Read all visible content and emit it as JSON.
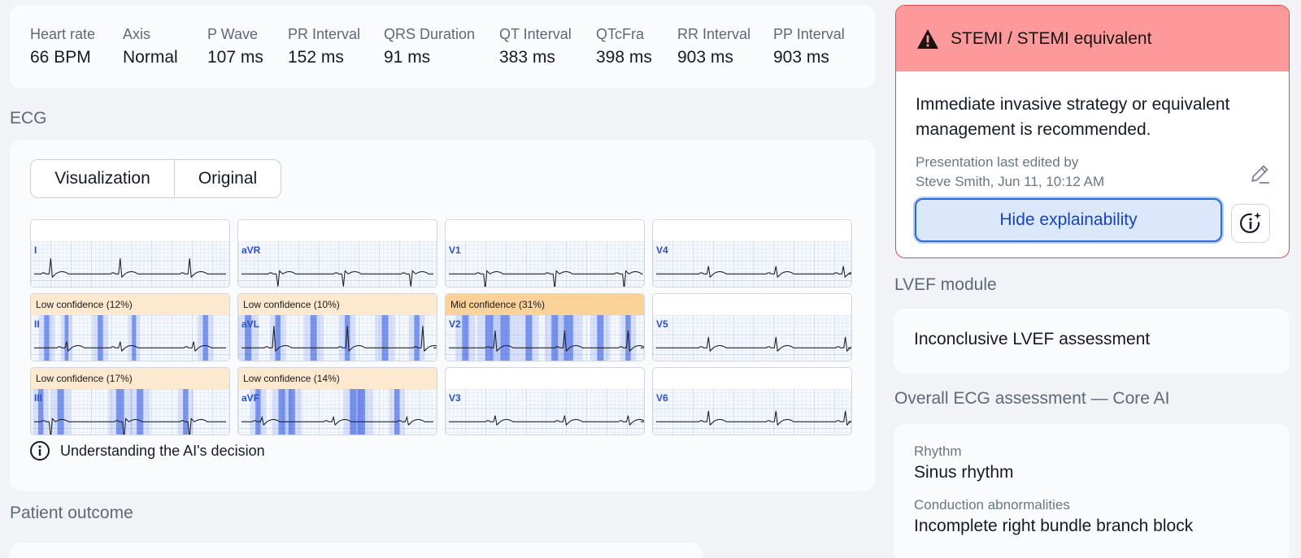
{
  "metrics": [
    {
      "label": "Heart rate",
      "value": "66 BPM"
    },
    {
      "label": "Axis",
      "value": "Normal"
    },
    {
      "label": "P Wave",
      "value": "107 ms"
    },
    {
      "label": "PR Interval",
      "value": "152 ms"
    },
    {
      "label": "QRS Duration",
      "value": "91 ms"
    },
    {
      "label": "QT Interval",
      "value": "383 ms"
    },
    {
      "label": "QTcFra",
      "value": "398 ms"
    },
    {
      "label": "RR Interval",
      "value": "903 ms"
    },
    {
      "label": "PP Interval",
      "value": "903 ms"
    }
  ],
  "ecg": {
    "title": "ECG",
    "tabs": {
      "visualization": "Visualization",
      "original": "Original"
    },
    "leads": [
      {
        "name": "I",
        "confidence": ""
      },
      {
        "name": "aVR",
        "confidence": ""
      },
      {
        "name": "V1",
        "confidence": ""
      },
      {
        "name": "V4",
        "confidence": ""
      },
      {
        "name": "II",
        "confidence": "Low confidence (12%)"
      },
      {
        "name": "aVL",
        "confidence": "Low confidence (10%)"
      },
      {
        "name": "V2",
        "confidence": "Mid confidence (31%)"
      },
      {
        "name": "V5",
        "confidence": ""
      },
      {
        "name": "III",
        "confidence": "Low confidence (17%)"
      },
      {
        "name": "aVF",
        "confidence": "Low confidence (14%)"
      },
      {
        "name": "V3",
        "confidence": ""
      },
      {
        "name": "V6",
        "confidence": ""
      }
    ],
    "ai_note": "Understanding the AI's decision"
  },
  "outcome": {
    "title": "Patient outcome"
  },
  "alert": {
    "title": "STEMI / STEMI equivalent",
    "message": "Immediate invasive strategy or equivalent management is recommended.",
    "edited_line1": "Presentation last edited by",
    "edited_line2": "Steve Smith, Jun 11, 10:12 AM",
    "hide_button": "Hide explainability"
  },
  "lvef": {
    "title": "LVEF module",
    "result": "Inconclusive LVEF assessment"
  },
  "overall": {
    "title": "Overall ECG assessment — Core AI",
    "rhythm_label": "Rhythm",
    "rhythm_value": "Sinus rhythm",
    "conduction_label": "Conduction abnormalities",
    "conduction_value": "Incomplete right bundle branch block"
  },
  "colors": {
    "alert_header": "#fc9a9b",
    "alert_border": "#e4474b",
    "low_confidence": "#fde9d0",
    "mid_confidence": "#fcd29b",
    "heatmap": "#2f55e0",
    "button_blue": "#2e6ad9"
  }
}
